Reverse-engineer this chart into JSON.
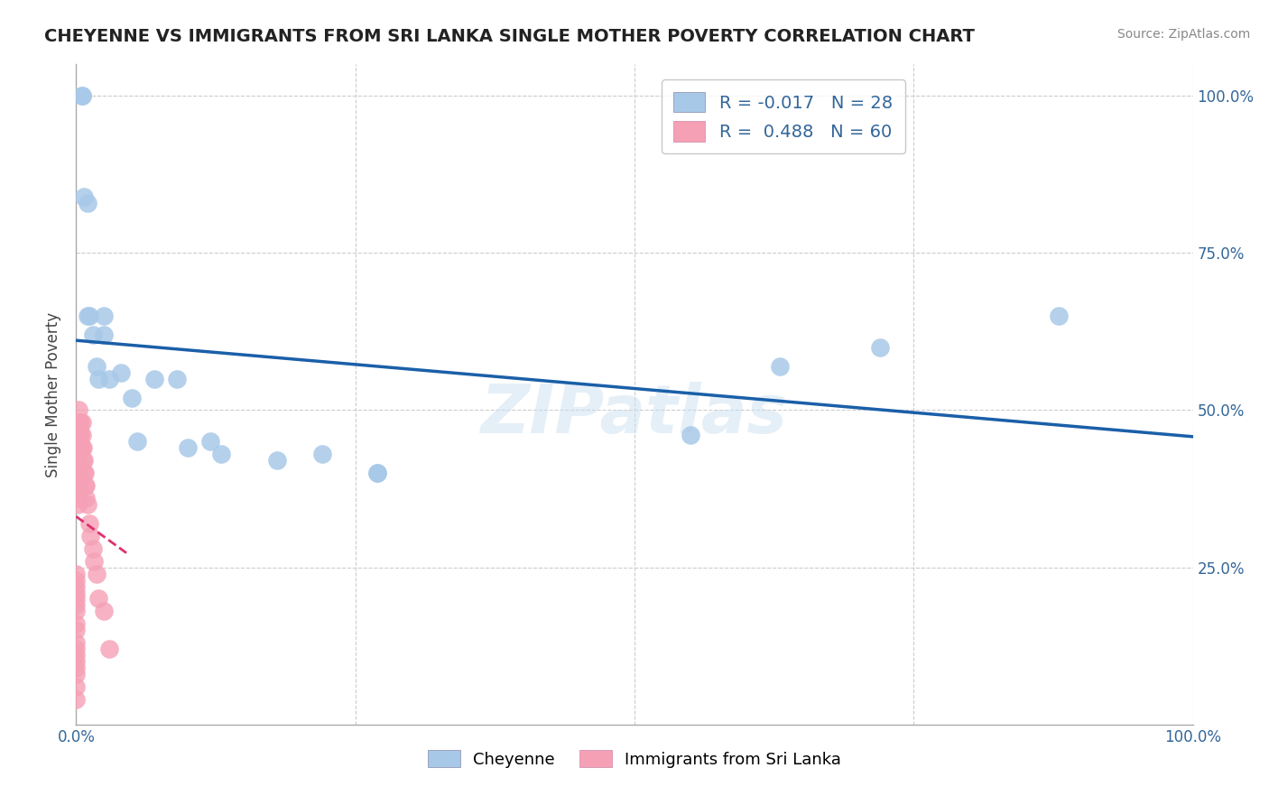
{
  "title": "CHEYENNE VS IMMIGRANTS FROM SRI LANKA SINGLE MOTHER POVERTY CORRELATION CHART",
  "source": "Source: ZipAtlas.com",
  "ylabel": "Single Mother Poverty",
  "watermark": "ZIPatlas",
  "legend_cheyenne_text": "R = -0.017   N = 28",
  "legend_sri_lanka_text": "R =  0.488   N = 60",
  "cheyenne_label": "Cheyenne",
  "sri_lanka_label": "Immigrants from Sri Lanka",
  "cheyenne_color": "#a8c8e8",
  "sri_lanka_color": "#f5a0b5",
  "cheyenne_line_color": "#1a5fa8",
  "sri_lanka_line_color": "#e03070",
  "background_color": "#ffffff",
  "grid_color": "#cccccc",
  "cheyenne_x": [
    0.005,
    0.005,
    0.007,
    0.01,
    0.01,
    0.012,
    0.015,
    0.018,
    0.02,
    0.025,
    0.025,
    0.03,
    0.04,
    0.05,
    0.055,
    0.07,
    0.09,
    0.1,
    0.12,
    0.13,
    0.18,
    0.22,
    0.27,
    0.27,
    0.55,
    0.63,
    0.72,
    0.88
  ],
  "cheyenne_y": [
    1.0,
    1.0,
    0.84,
    0.83,
    0.65,
    0.65,
    0.62,
    0.57,
    0.55,
    0.62,
    0.65,
    0.55,
    0.56,
    0.52,
    0.45,
    0.55,
    0.55,
    0.44,
    0.45,
    0.43,
    0.42,
    0.43,
    0.4,
    0.4,
    0.46,
    0.57,
    0.6,
    0.65
  ],
  "sri_lanka_x": [
    0.0,
    0.0,
    0.0,
    0.0,
    0.0,
    0.0,
    0.0,
    0.0,
    0.0,
    0.0,
    0.0,
    0.0,
    0.0,
    0.0,
    0.0,
    0.0,
    0.0,
    0.001,
    0.001,
    0.001,
    0.001,
    0.001,
    0.001,
    0.001,
    0.001,
    0.001,
    0.002,
    0.002,
    0.002,
    0.002,
    0.002,
    0.002,
    0.003,
    0.003,
    0.003,
    0.003,
    0.003,
    0.004,
    0.004,
    0.004,
    0.005,
    0.005,
    0.005,
    0.006,
    0.006,
    0.007,
    0.007,
    0.008,
    0.008,
    0.009,
    0.009,
    0.01,
    0.012,
    0.013,
    0.015,
    0.016,
    0.018,
    0.02,
    0.025,
    0.03
  ],
  "sri_lanka_y": [
    0.04,
    0.06,
    0.08,
    0.09,
    0.1,
    0.11,
    0.12,
    0.13,
    0.15,
    0.16,
    0.18,
    0.19,
    0.2,
    0.21,
    0.22,
    0.23,
    0.24,
    0.35,
    0.36,
    0.38,
    0.39,
    0.4,
    0.42,
    0.44,
    0.46,
    0.47,
    0.44,
    0.45,
    0.46,
    0.47,
    0.48,
    0.5,
    0.44,
    0.45,
    0.46,
    0.47,
    0.48,
    0.44,
    0.46,
    0.48,
    0.44,
    0.46,
    0.48,
    0.42,
    0.44,
    0.4,
    0.42,
    0.38,
    0.4,
    0.36,
    0.38,
    0.35,
    0.32,
    0.3,
    0.28,
    0.26,
    0.24,
    0.2,
    0.18,
    0.12
  ],
  "xlim": [
    0.0,
    1.0
  ],
  "ylim": [
    0.0,
    1.05
  ]
}
